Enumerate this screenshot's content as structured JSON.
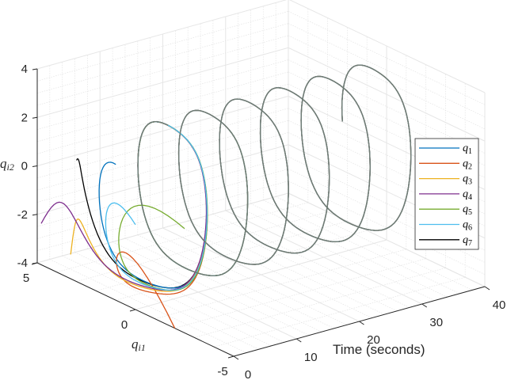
{
  "chart_data": {
    "type": "line3d",
    "title": "",
    "xlabel": "Time (seconds)",
    "ylabel": "q_i1",
    "zlabel": "q_i2",
    "xlabel_display": "Time (seconds)",
    "ylabel_display": {
      "base": "q",
      "sub": "i1"
    },
    "zlabel_display": {
      "base": "q",
      "sub": "i2"
    },
    "xlim": [
      0,
      40
    ],
    "ylim": [
      -5,
      5
    ],
    "zlim": [
      -4,
      4
    ],
    "xticks": [
      "0",
      "10",
      "20",
      "30",
      "40"
    ],
    "yticks": [
      "5",
      "0",
      "-5"
    ],
    "zticks": [
      "4",
      "2",
      "0",
      "-2",
      "-4"
    ],
    "grid": true,
    "minor_grid": true,
    "legend_position": "east",
    "legend": [
      {
        "label": "q",
        "sub": "1",
        "color": "#0072BD"
      },
      {
        "label": "q",
        "sub": "2",
        "color": "#D95319"
      },
      {
        "label": "q",
        "sub": "3",
        "color": "#EDB120"
      },
      {
        "label": "q",
        "sub": "4",
        "color": "#7E2F8E"
      },
      {
        "label": "q",
        "sub": "5",
        "color": "#77AC30"
      },
      {
        "label": "q",
        "sub": "6",
        "color": "#4DBEEE"
      },
      {
        "label": "q",
        "sub": "7",
        "color": "#000000"
      }
    ],
    "description": "Seven agent trajectories (q_i1, q_i2) over time 0-40 s, starting from scattered initial conditions and converging to a common closed periodic orbit (limit cycle) of amplitude about 3.5 in q_i2 and about 2.5 in q_i1, with period roughly 6.5 s; after convergence all curves overlap.",
    "series": [
      {
        "name": "q1",
        "color": "#0072BD",
        "initial": {
          "t": 0,
          "q1": 1.0,
          "q2": 1.6
        }
      },
      {
        "name": "q2",
        "color": "#D95319",
        "initial": {
          "t": 0,
          "q1": -2.0,
          "q2": -4.0
        }
      },
      {
        "name": "q3",
        "color": "#EDB120",
        "initial": {
          "t": 0,
          "q1": 3.3,
          "q2": -3.0
        }
      },
      {
        "name": "q4",
        "color": "#7E2F8E",
        "initial": {
          "t": 0,
          "q1": 4.8,
          "q2": -2.3
        }
      },
      {
        "name": "q5",
        "color": "#77AC30",
        "initial": {
          "t": 0,
          "q1": -2.5,
          "q2": 0.3
        }
      },
      {
        "name": "q6",
        "color": "#4DBEEE",
        "initial": {
          "t": 0,
          "q1": 0.0,
          "q2": -0.5
        }
      },
      {
        "name": "q7",
        "color": "#000000",
        "initial": {
          "t": 0,
          "q1": 3.0,
          "q2": 1.0
        }
      }
    ],
    "limit_cycle": {
      "q1_amplitude": 2.5,
      "q2_amplitude": 3.5,
      "period_s": 6.5,
      "t_end": 40
    }
  }
}
